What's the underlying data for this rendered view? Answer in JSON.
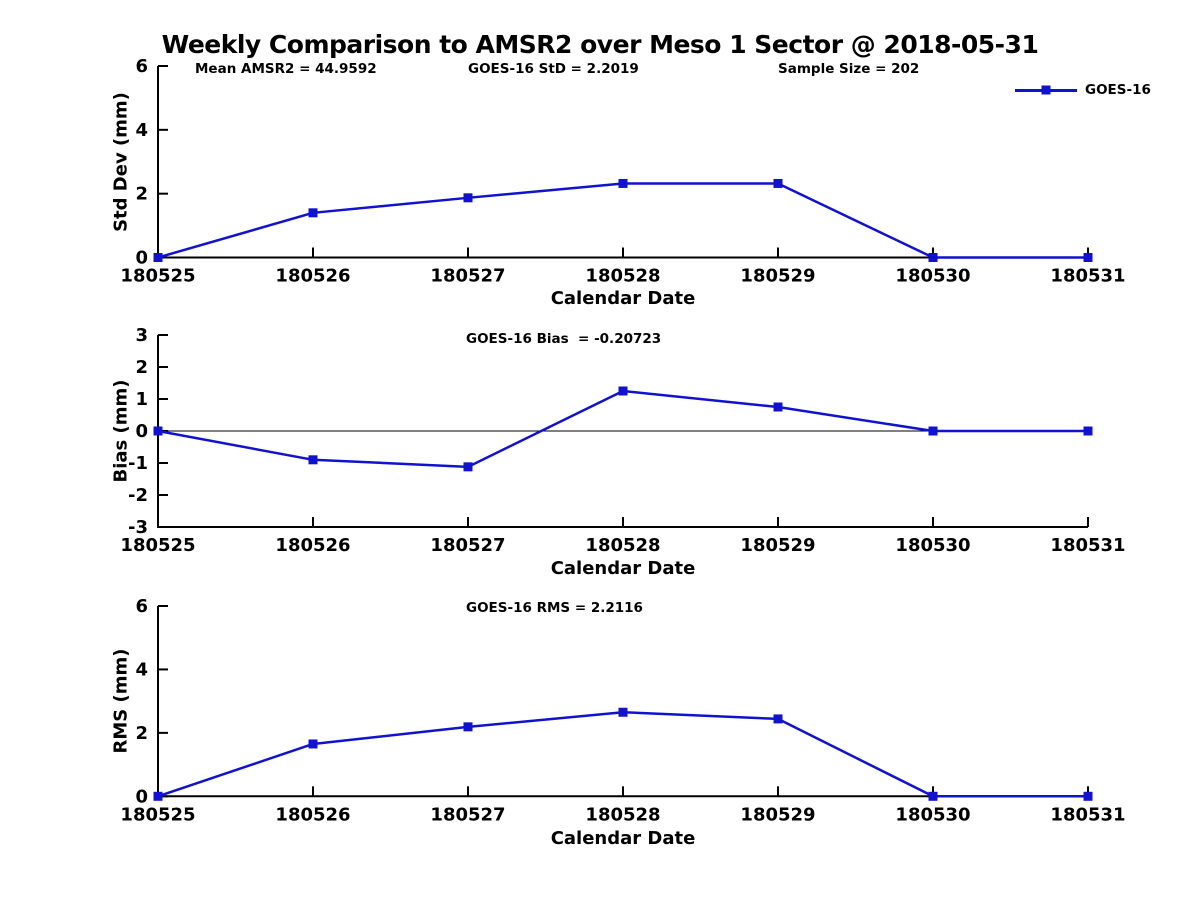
{
  "title": "Weekly Comparison to AMSR2 over Meso 1 Sector @ 2018-05-31",
  "accent_color": "#1111d0",
  "axis_color": "#000000",
  "legend": {
    "label": "GOES-16"
  },
  "chart_data": [
    {
      "type": "line",
      "panel": "std-dev",
      "annotations": [
        "Mean AMSR2 = 44.9592",
        "GOES-16 StD = 2.2019",
        "Sample Size = 202"
      ],
      "categories": [
        "180525",
        "180526",
        "180527",
        "180528",
        "180529",
        "180530",
        "180531"
      ],
      "series": [
        {
          "name": "GOES-16",
          "values": [
            0,
            1.4,
            1.87,
            2.32,
            2.32,
            0,
            0
          ]
        }
      ],
      "xlabel": "Calendar Date",
      "ylabel": "Std Dev (mm)",
      "ylim": [
        0,
        6
      ],
      "yticks": [
        0,
        2,
        4,
        6
      ],
      "grid": false,
      "legend_position": "top-right"
    },
    {
      "type": "line",
      "panel": "bias",
      "annotations": [
        "GOES-16 Bias  = -0.20723"
      ],
      "categories": [
        "180525",
        "180526",
        "180527",
        "180528",
        "180529",
        "180530",
        "180531"
      ],
      "series": [
        {
          "name": "GOES-16",
          "values": [
            0,
            -0.9,
            -1.12,
            1.25,
            0.75,
            0,
            0
          ]
        }
      ],
      "xlabel": "Calendar Date",
      "ylabel": "Bias (mm)",
      "ylim": [
        -3,
        3
      ],
      "yticks": [
        -3,
        -2,
        -1,
        0,
        1,
        2,
        3
      ],
      "zero_line": true,
      "grid": false
    },
    {
      "type": "line",
      "panel": "rms",
      "annotations": [
        "GOES-16 RMS = 2.2116"
      ],
      "categories": [
        "180525",
        "180526",
        "180527",
        "180528",
        "180529",
        "180530",
        "180531"
      ],
      "series": [
        {
          "name": "GOES-16",
          "values": [
            0,
            1.65,
            2.19,
            2.65,
            2.44,
            0,
            0
          ]
        }
      ],
      "xlabel": "Calendar Date",
      "ylabel": "RMS (mm)",
      "ylim": [
        0,
        6
      ],
      "yticks": [
        0,
        2,
        4,
        6
      ],
      "grid": false
    }
  ]
}
